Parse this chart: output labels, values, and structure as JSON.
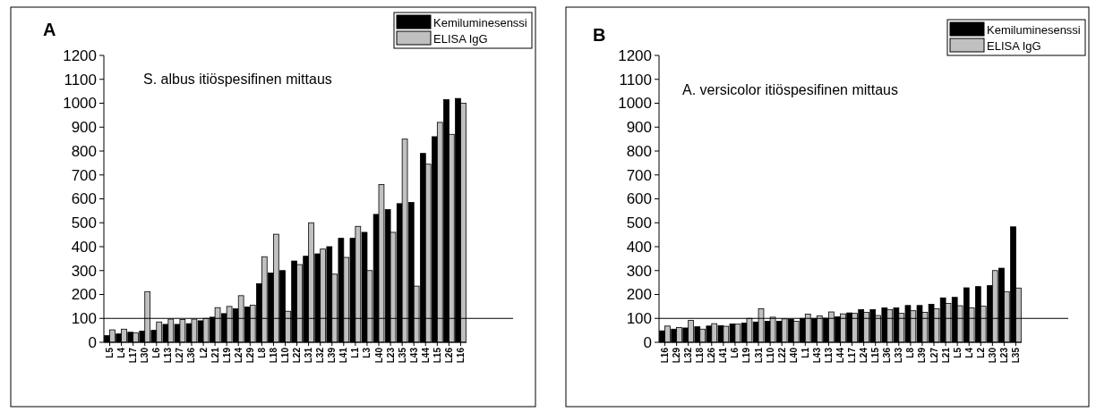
{
  "chart_data": [
    {
      "type": "bar",
      "title": "A",
      "annotations": [
        "S. albus itiöspesifinen  mittaus"
      ],
      "categories": [
        "L5",
        "L4",
        "L17",
        "L30",
        "L6",
        "L13",
        "L27",
        "L36",
        "L2",
        "L21",
        "L19",
        "L24",
        "L29",
        "L8",
        "L18",
        "L10",
        "L22",
        "L31",
        "L32",
        "L39",
        "L41",
        "L1",
        "L3",
        "L40",
        "L23",
        "L35",
        "L43",
        "L44",
        "L15",
        "L26",
        "L16"
      ],
      "series": [
        {
          "name": "Kemiluminesenssi",
          "color": "#000000",
          "values": [
            28,
            35,
            42,
            47,
            50,
            75,
            75,
            78,
            90,
            105,
            120,
            140,
            148,
            245,
            290,
            300,
            340,
            360,
            370,
            400,
            435,
            435,
            460,
            535,
            555,
            580,
            585,
            790,
            860,
            1015,
            1020
          ]
        },
        {
          "name": "ELISA IgG",
          "color": "#c0c0c0",
          "values": [
            52,
            55,
            40,
            212,
            85,
            97,
            95,
            97,
            100,
            145,
            150,
            195,
            155,
            358,
            452,
            130,
            325,
            500,
            390,
            285,
            355,
            485,
            300,
            660,
            460,
            850,
            235,
            745,
            920,
            870,
            1000
          ]
        }
      ],
      "ylim": [
        0,
        1200
      ],
      "yticks": [
        0,
        100,
        200,
        300,
        400,
        500,
        600,
        700,
        800,
        900,
        1000,
        1100,
        1200
      ],
      "legend": "top right",
      "grid": false,
      "ref_lines": [
        {
          "axis": "y",
          "value": 100,
          "color": "#000000"
        }
      ]
    },
    {
      "type": "bar",
      "title": "B",
      "annotations": [
        "A. versicolor itiöspesifinen mittaus"
      ],
      "categories": [
        "L16",
        "L29",
        "L32",
        "L18",
        "L26",
        "L41",
        "L6",
        "L19",
        "L31",
        "L10",
        "L22",
        "L40",
        "L1",
        "L43",
        "L13",
        "L44",
        "L17",
        "L24",
        "L15",
        "L36",
        "L33",
        "L8",
        "L39",
        "L27",
        "L21",
        "L5",
        "L4",
        "L2",
        "L30",
        "L23",
        "L35"
      ],
      "series": [
        {
          "name": "Kemiluminesenssi",
          "color": "#000000",
          "values": [
            48,
            55,
            60,
            65,
            68,
            70,
            77,
            80,
            85,
            88,
            88,
            97,
            100,
            100,
            101,
            107,
            123,
            137,
            137,
            144,
            144,
            154,
            154,
            159,
            186,
            188,
            228,
            233,
            237,
            310,
            483
          ]
        },
        {
          "name": "ELISA IgG",
          "color": "#c0c0c0",
          "values": [
            68,
            62,
            92,
            55,
            78,
            67,
            76,
            100,
            140,
            105,
            98,
            88,
            118,
            111,
            127,
            119,
            121,
            125,
            112,
            137,
            121,
            132,
            125,
            140,
            163,
            153,
            144,
            151,
            300,
            212,
            227
          ]
        }
      ],
      "ylim": [
        0,
        1200
      ],
      "yticks": [
        0,
        100,
        200,
        300,
        400,
        500,
        600,
        700,
        800,
        900,
        1000,
        1100,
        1200
      ],
      "legend": "top right",
      "grid": false,
      "ref_lines": [
        {
          "axis": "y",
          "value": 100,
          "color": "#000000"
        }
      ]
    }
  ]
}
